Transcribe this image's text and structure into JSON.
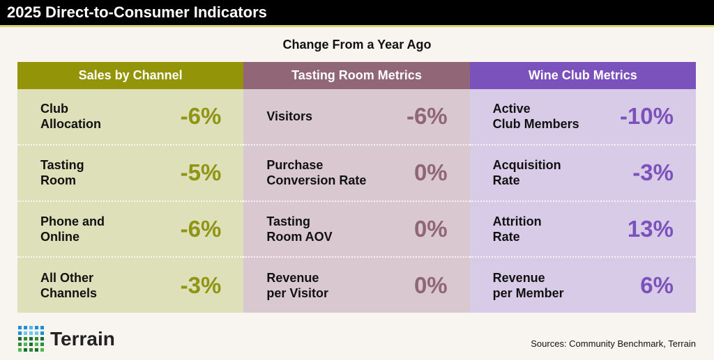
{
  "title": "2025 Direct-to-Consumer Indicators",
  "subtitle": "Change From a Year Ago",
  "colors": {
    "sales_header": "#949409",
    "sales_body": "#dde0b8",
    "sales_value": "#8f9412",
    "tasting_header": "#916777",
    "tasting_body": "#d9c8cf",
    "tasting_value": "#8f6577",
    "club_header": "#7b52bb",
    "club_body": "#d8cbe8",
    "club_value": "#7b52bb"
  },
  "columns": [
    {
      "header": "Sales by Channel",
      "rows": [
        {
          "label": "Club\nAllocation",
          "value": "-6%"
        },
        {
          "label": "Tasting\nRoom",
          "value": "-5%"
        },
        {
          "label": "Phone and\nOnline",
          "value": "-6%"
        },
        {
          "label": "All Other\nChannels",
          "value": "-3%"
        }
      ]
    },
    {
      "header": "Tasting Room Metrics",
      "rows": [
        {
          "label": "Visitors",
          "value": "-6%"
        },
        {
          "label": "Purchase\nConversion Rate",
          "value": "0%"
        },
        {
          "label": "Tasting\nRoom AOV",
          "value": "0%"
        },
        {
          "label": "Revenue\nper Visitor",
          "value": "0%"
        }
      ]
    },
    {
      "header": "Wine Club Metrics",
      "rows": [
        {
          "label": "Active\nClub Members",
          "value": "-10%"
        },
        {
          "label": "Acquisition\nRate",
          "value": "-3%"
        },
        {
          "label": "Attrition\nRate",
          "value": "13%"
        },
        {
          "label": "Revenue\nper Member",
          "value": "6%"
        }
      ]
    }
  ],
  "logo": {
    "text": "Terrain",
    "icon": "dot-grid-logo"
  },
  "sources": "Sources: Community Benchmark, Terrain"
}
